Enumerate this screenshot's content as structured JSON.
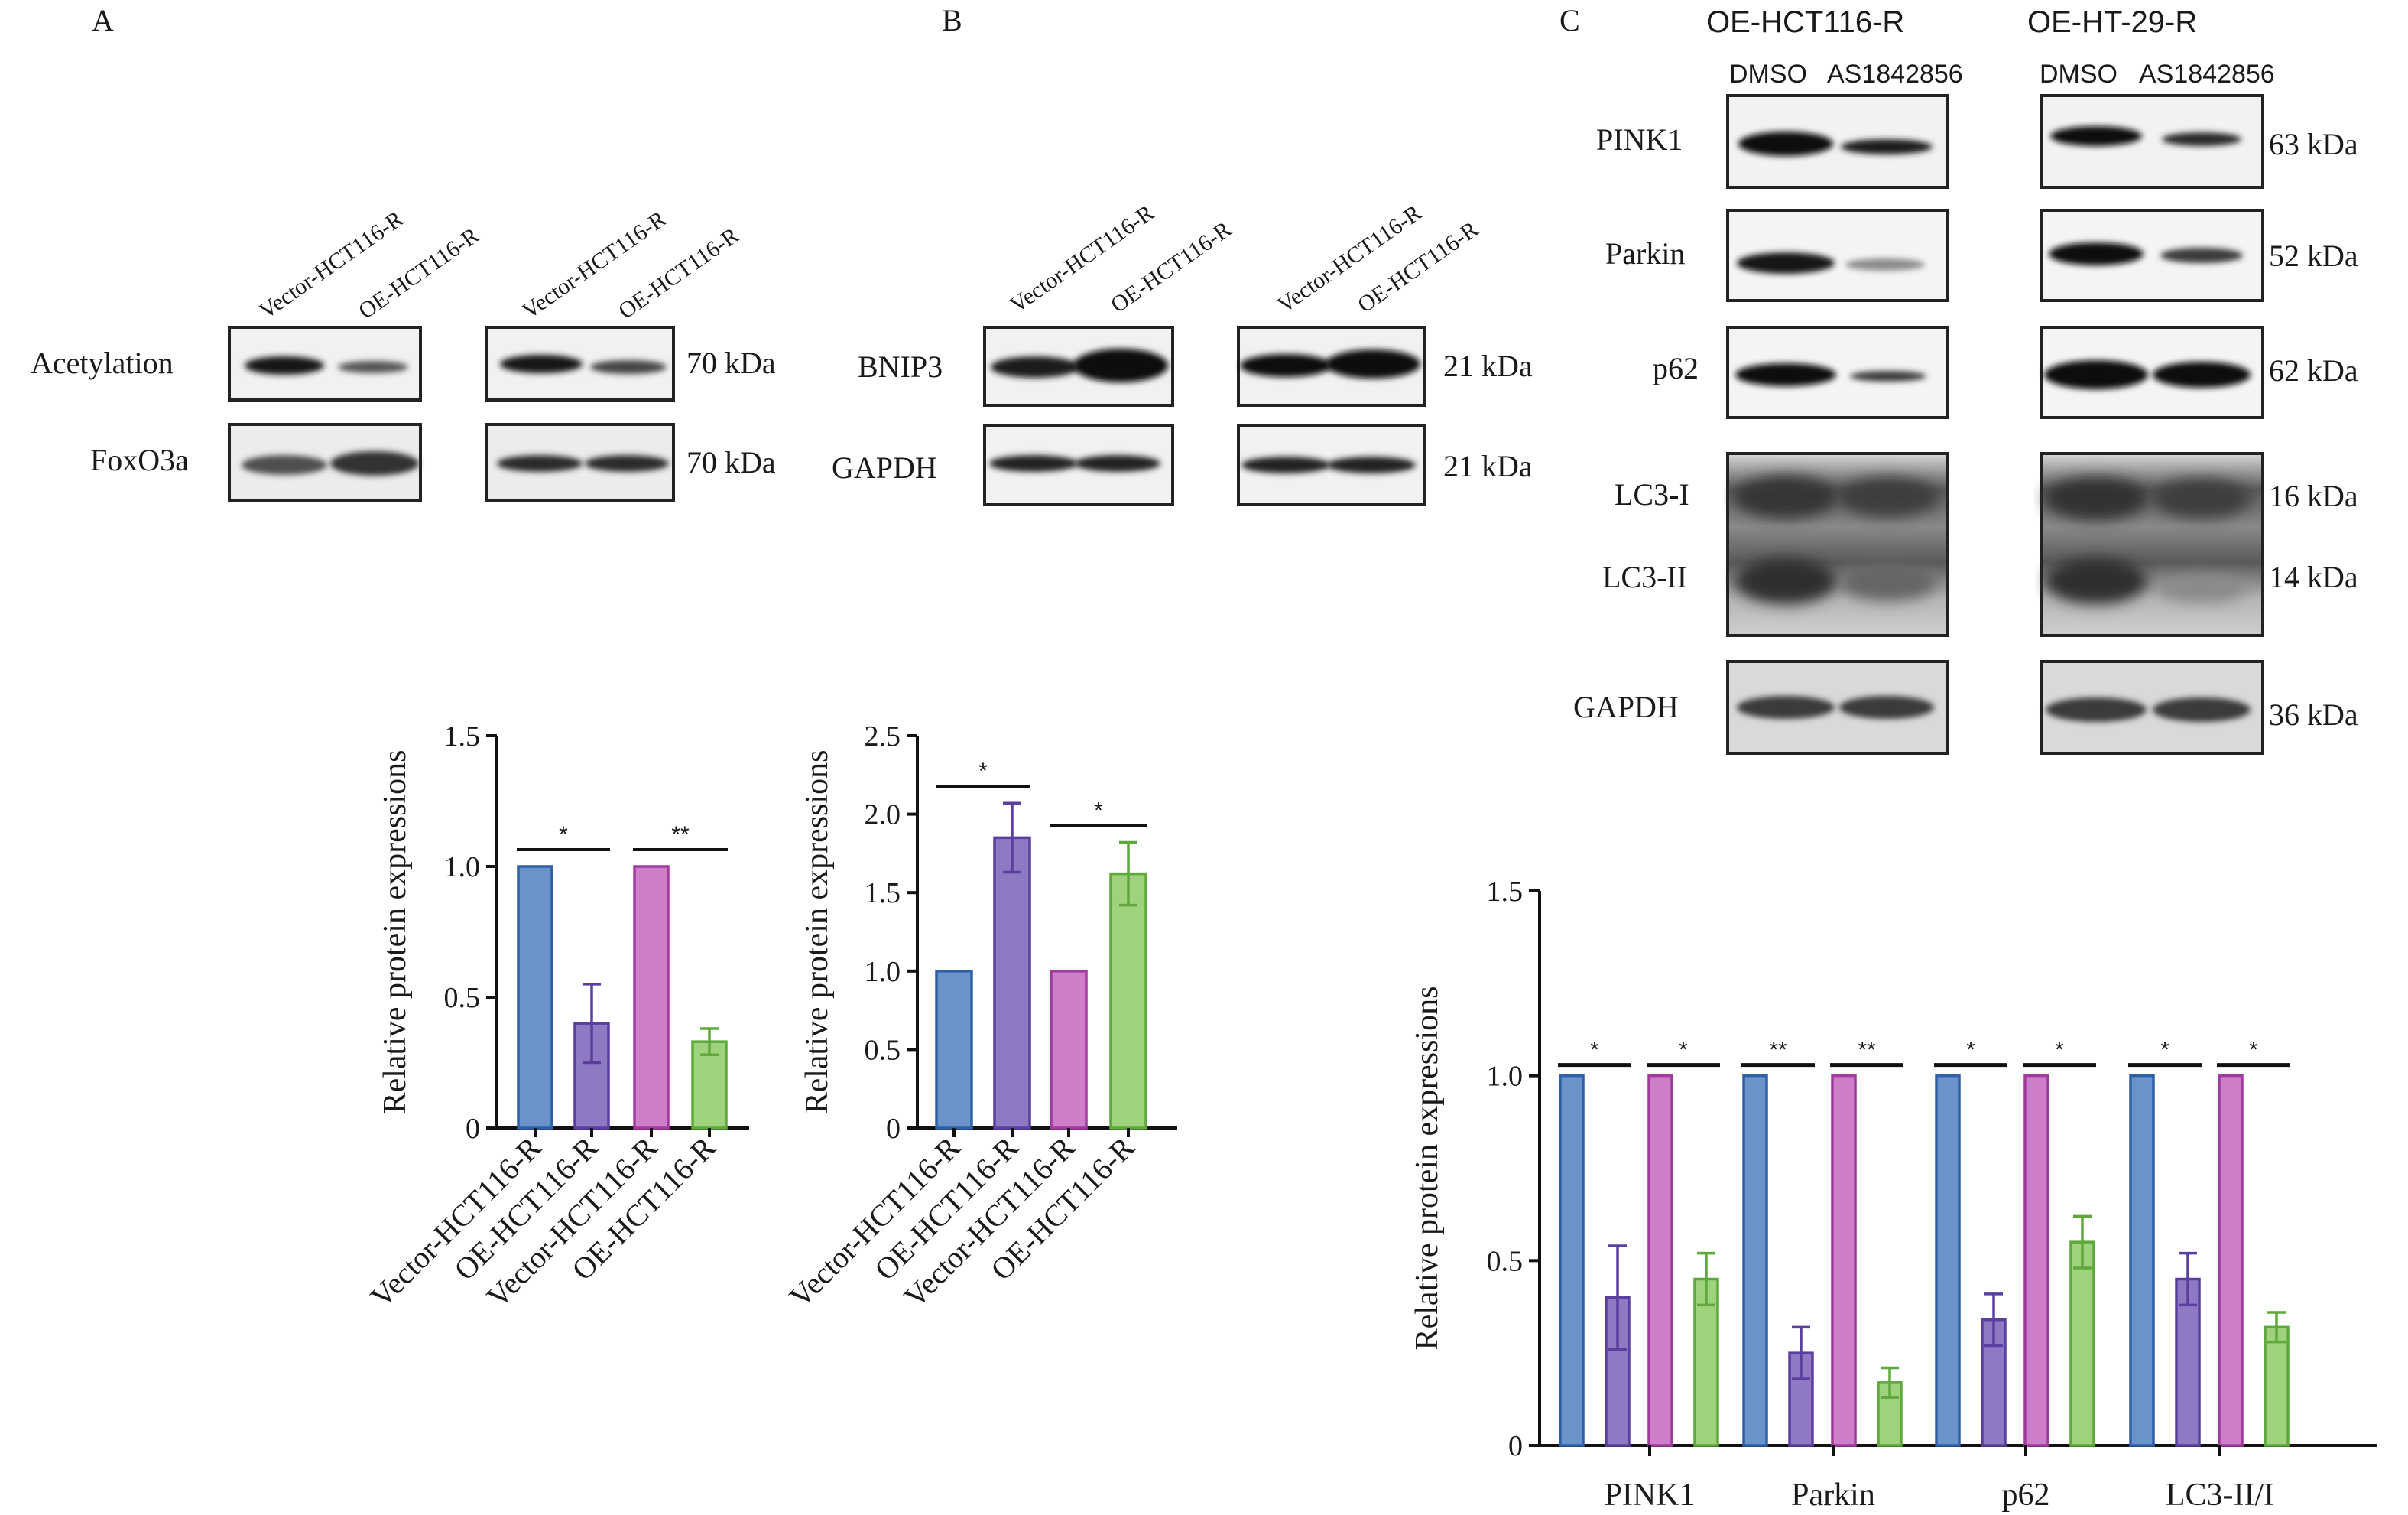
{
  "panels": {
    "A": {
      "letter": "A",
      "lane_labels": [
        "Vector-HCT116-R",
        "OE-HCT116-R",
        "Vector-HCT116-R",
        "OE-HCT116-R"
      ],
      "rows": [
        {
          "name": "Acetylation",
          "kda": "70 kDa"
        },
        {
          "name": "FoxO3a",
          "kda": "70 kDa"
        }
      ]
    },
    "B": {
      "letter": "B",
      "lane_labels": [
        "Vector-HCT116-R",
        "OE-HCT116-R",
        "Vector-HCT116-R",
        "OE-HCT116-R"
      ],
      "rows": [
        {
          "name": "BNIP3",
          "kda": "21 kDa"
        },
        {
          "name": "GAPDH",
          "kda": "21 kDa"
        }
      ]
    },
    "C": {
      "letter": "C",
      "groups": [
        "OE-HCT116-R",
        "OE-HT-29-R"
      ],
      "conditions": [
        "DMSO",
        "AS1842856",
        "DMSO",
        "AS1842856"
      ],
      "rows": [
        {
          "name": "PINK1",
          "kda": "63 kDa"
        },
        {
          "name": "Parkin",
          "kda": "52 kDa"
        },
        {
          "name": "p62",
          "kda": "62 kDa"
        },
        {
          "name": "LC3-I",
          "kda": "16 kDa"
        },
        {
          "name": "LC3-II",
          "kda": "14 kDa"
        },
        {
          "name": "GAPDH",
          "kda": "36 kDa"
        }
      ]
    }
  },
  "colors": {
    "blue": "#6a93c9",
    "purple": "#8f79c2",
    "pink": "#cc7fc8",
    "green": "#9fd27c",
    "blue_edge": "#2f5fa8",
    "purple_edge": "#5a3fa0",
    "pink_edge": "#a23a9e",
    "green_edge": "#5ea83c"
  },
  "chart_data": [
    {
      "type": "bar",
      "ylabel": "Relative protein expressions",
      "ylim": [
        0,
        1.5
      ],
      "yticks": [
        "0",
        "0.5",
        "1.0",
        "1.5"
      ],
      "categories": [
        "Vector-HCT116-R",
        "OE-HCT116-R",
        "Vector-HCT116-R",
        "OE-HCT116-R"
      ],
      "values": [
        1.0,
        0.4,
        1.0,
        0.33
      ],
      "errors": [
        0,
        0.15,
        0,
        0.05
      ],
      "significance": [
        {
          "between": [
            0,
            1
          ],
          "label": "*"
        },
        {
          "between": [
            2,
            3
          ],
          "label": "**"
        }
      ]
    },
    {
      "type": "bar",
      "ylabel": "Relative protein expressions",
      "ylim": [
        0,
        2.5
      ],
      "yticks": [
        "0",
        "0.5",
        "1.0",
        "1.5",
        "2.0",
        "2.5"
      ],
      "categories": [
        "Vector-HCT116-R",
        "OE-HCT116-R",
        "Vector-HCT116-R",
        "OE-HCT116-R"
      ],
      "values": [
        1.0,
        1.85,
        1.0,
        1.62
      ],
      "errors": [
        0,
        0.22,
        0,
        0.2
      ],
      "significance": [
        {
          "between": [
            0,
            1
          ],
          "label": "*"
        },
        {
          "between": [
            2,
            3
          ],
          "label": "*"
        }
      ]
    },
    {
      "type": "bar",
      "ylabel": "Relative protein expressions",
      "ylim": [
        0,
        1.5
      ],
      "yticks": [
        "0",
        "0.5",
        "1.0",
        "1.5"
      ],
      "categories": [
        "PINK1",
        "Parkin",
        "p62",
        "LC3-II/I"
      ],
      "series": [
        {
          "values": [
            1.0,
            1.0,
            1.0,
            1.0
          ],
          "errors": [
            0,
            0,
            0,
            0
          ]
        },
        {
          "values": [
            0.4,
            0.25,
            0.34,
            0.45
          ],
          "errors": [
            0.14,
            0.07,
            0.07,
            0.07
          ]
        },
        {
          "values": [
            1.0,
            1.0,
            1.0,
            1.0
          ],
          "errors": [
            0,
            0,
            0,
            0
          ]
        },
        {
          "values": [
            0.45,
            0.17,
            0.55,
            0.32
          ],
          "errors": [
            0.07,
            0.04,
            0.07,
            0.04
          ]
        }
      ],
      "significance": [
        {
          "category": 0,
          "pair": [
            0,
            1
          ],
          "label": "*"
        },
        {
          "category": 0,
          "pair": [
            2,
            3
          ],
          "label": "*"
        },
        {
          "category": 1,
          "pair": [
            0,
            1
          ],
          "label": "**"
        },
        {
          "category": 1,
          "pair": [
            2,
            3
          ],
          "label": "**"
        },
        {
          "category": 2,
          "pair": [
            0,
            1
          ],
          "label": "*"
        },
        {
          "category": 2,
          "pair": [
            2,
            3
          ],
          "label": "*"
        },
        {
          "category": 3,
          "pair": [
            0,
            1
          ],
          "label": "*"
        },
        {
          "category": 3,
          "pair": [
            2,
            3
          ],
          "label": "*"
        }
      ]
    }
  ]
}
